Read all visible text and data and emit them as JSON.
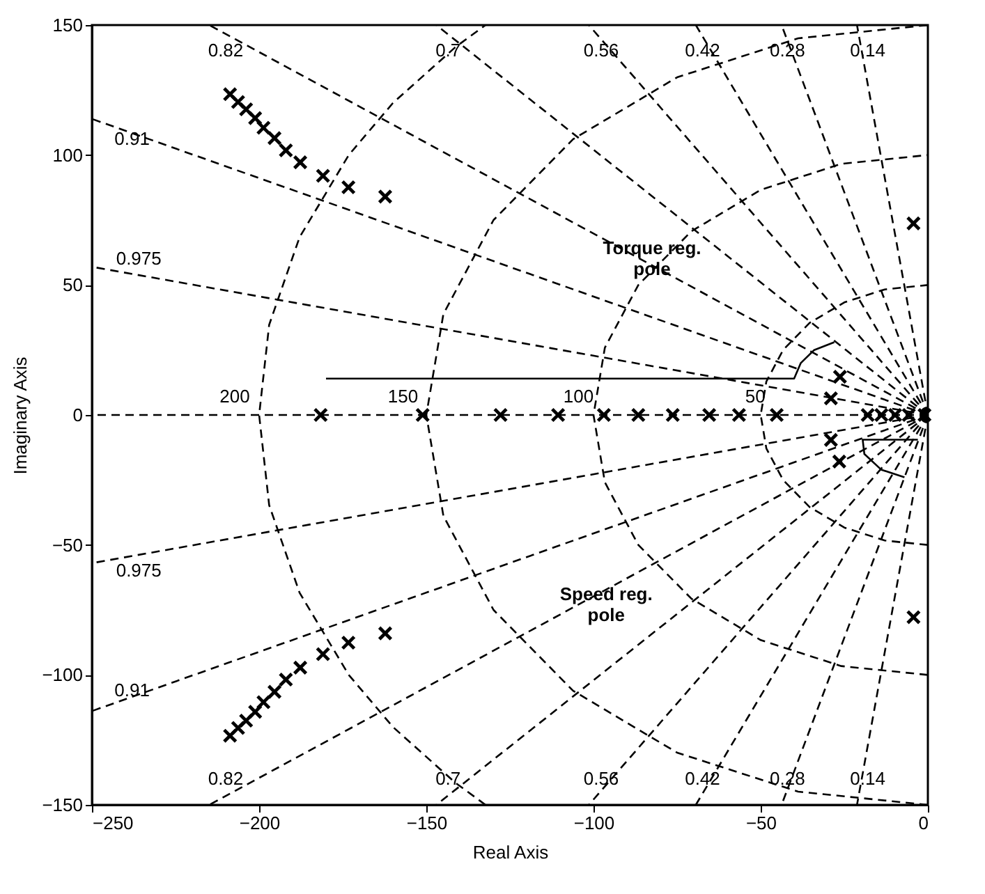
{
  "chart_data": {
    "type": "scatter",
    "xlabel": "Real Axis",
    "ylabel": "Imaginary Axis",
    "xlim": [
      -250,
      0
    ],
    "ylim": [
      -150,
      150
    ],
    "xticks": [
      -250,
      -200,
      -150,
      -100,
      -50,
      0
    ],
    "yticks": [
      -150,
      -100,
      -50,
      0,
      50,
      100,
      150
    ],
    "grid": false,
    "series": [
      {
        "type": "line",
        "line_style": "dashed",
        "color": "#000000",
        "marker": "none",
        "x": [
          0,
          -21.2
        ],
        "values": [
          0,
          150
        ]
      },
      {
        "type": "line",
        "line_style": "dashed",
        "color": "#000000",
        "marker": "none",
        "x": [
          0,
          -43.75
        ],
        "values": [
          0,
          150
        ]
      },
      {
        "type": "line",
        "line_style": "dashed",
        "color": "#000000",
        "marker": "none",
        "x": [
          0,
          -69.4
        ],
        "values": [
          0,
          150
        ]
      },
      {
        "type": "line",
        "line_style": "dashed",
        "color": "#000000",
        "marker": "none",
        "x": [
          0,
          -101.4
        ],
        "values": [
          0,
          150
        ]
      },
      {
        "type": "line",
        "line_style": "dashed",
        "color": "#000000",
        "marker": "none",
        "x": [
          0,
          -147
        ],
        "values": [
          0,
          150
        ]
      },
      {
        "type": "line",
        "line_style": "dashed",
        "color": "#000000",
        "marker": "none",
        "x": [
          0,
          -214.9
        ],
        "values": [
          0,
          150
        ]
      },
      {
        "type": "line",
        "line_style": "dashed",
        "color": "#000000",
        "marker": "none",
        "x": [
          0,
          -250
        ],
        "values": [
          0,
          113.9
        ]
      },
      {
        "type": "line",
        "line_style": "dashed",
        "color": "#000000",
        "marker": "none",
        "x": [
          0,
          -250
        ],
        "values": [
          0,
          57
        ]
      },
      {
        "type": "line",
        "line_style": "dashed",
        "color": "#000000",
        "marker": "none",
        "x": [
          0,
          -250
        ],
        "values": [
          0,
          0
        ]
      },
      {
        "type": "line",
        "line_style": "dashed",
        "color": "#000000",
        "marker": "none",
        "x": [
          0,
          -250
        ],
        "values": [
          0,
          -57
        ]
      },
      {
        "type": "line",
        "line_style": "dashed",
        "color": "#000000",
        "marker": "none",
        "x": [
          0,
          -250
        ],
        "values": [
          0,
          -113.9
        ]
      },
      {
        "type": "line",
        "line_style": "dashed",
        "color": "#000000",
        "marker": "none",
        "x": [
          0,
          -214.9
        ],
        "values": [
          0,
          -150
        ]
      },
      {
        "type": "line",
        "line_style": "dashed",
        "color": "#000000",
        "marker": "none",
        "x": [
          0,
          -147
        ],
        "values": [
          0,
          -150
        ]
      },
      {
        "type": "line",
        "line_style": "dashed",
        "color": "#000000",
        "marker": "none",
        "x": [
          0,
          -101.4
        ],
        "values": [
          0,
          -150
        ]
      },
      {
        "type": "line",
        "line_style": "dashed",
        "color": "#000000",
        "marker": "none",
        "x": [
          0,
          -69.4
        ],
        "values": [
          0,
          -150
        ]
      },
      {
        "type": "line",
        "line_style": "dashed",
        "color": "#000000",
        "marker": "none",
        "x": [
          0,
          -43.75
        ],
        "values": [
          0,
          -150
        ]
      },
      {
        "type": "line",
        "line_style": "dashed",
        "color": "#000000",
        "marker": "none",
        "x": [
          0,
          -21.2
        ],
        "values": [
          0,
          -150
        ]
      },
      {
        "type": "line",
        "line_style": "dashed",
        "color": "#000000",
        "marker": "none",
        "x": [
          0,
          -12.9,
          -25,
          -35.4,
          -43.3,
          -48.3,
          -50,
          -48.3,
          -43.3,
          -35.4,
          -25,
          -12.9,
          0
        ],
        "values": [
          -50,
          -48.3,
          -43.3,
          -35.4,
          -25,
          -12.9,
          0,
          12.9,
          25,
          35.4,
          43.3,
          48.3,
          50
        ]
      },
      {
        "type": "line",
        "line_style": "dashed",
        "color": "#000000",
        "marker": "none",
        "x": [
          0,
          -25.9,
          -50,
          -70.7,
          -86.6,
          -96.6,
          -100,
          -96.6,
          -86.6,
          -70.7,
          -50,
          -25.9,
          0
        ],
        "values": [
          -100,
          -96.6,
          -86.6,
          -70.7,
          -50,
          -25.9,
          0,
          25.9,
          50,
          70.7,
          86.6,
          96.6,
          100
        ]
      },
      {
        "type": "line",
        "line_style": "dashed",
        "color": "#000000",
        "marker": "none",
        "x": [
          0,
          -38.8,
          -75,
          -106.1,
          -129.9,
          -144.9,
          -150,
          -144.9,
          -129.9,
          -106.1,
          -75,
          -38.8,
          0
        ],
        "values": [
          -150,
          -144.9,
          -129.9,
          -106.1,
          -75,
          -38.8,
          0,
          38.8,
          75,
          106.1,
          129.9,
          144.9,
          150
        ]
      },
      {
        "type": "line",
        "line_style": "dashed",
        "color": "#000000",
        "marker": "none",
        "x": [
          -132.3,
          -141.4,
          -160,
          -173.2,
          -187.9,
          -197,
          -200,
          -197,
          -187.9,
          -173.2,
          -160,
          -141.4,
          -132.3
        ],
        "values": [
          -150,
          -141.4,
          -120,
          -100,
          -68.4,
          -34.7,
          0,
          34.7,
          68.4,
          100,
          120,
          141.4,
          150
        ]
      },
      {
        "type": "line",
        "line_style": "solid",
        "color": "#000000",
        "marker": "none",
        "x": [
          -180,
          -40,
          -38,
          -34,
          -28
        ],
        "values": [
          14,
          14,
          20,
          25,
          28
        ]
      },
      {
        "type": "line",
        "line_style": "solid",
        "color": "#000000",
        "marker": "none",
        "x": [
          -3,
          -19.5,
          -19,
          -14,
          -7
        ],
        "values": [
          -9.5,
          -9.5,
          -15,
          -21,
          -24
        ]
      },
      {
        "color": "#000000",
        "marker": "cross",
        "x": [
          -208.7,
          -206.3,
          -203.9,
          -201.2,
          -198.7,
          -195.4,
          -192,
          -187.7,
          -180.9,
          -173.3,
          -162.3,
          -208.7,
          -206.3,
          -203.9,
          -201.2,
          -198.7,
          -195.4,
          -192,
          -187.7,
          -180.9,
          -173.3,
          -162.3,
          -181.6,
          -151.1,
          -127.8,
          -110.6,
          -96.9,
          -86.6,
          -76.3,
          -65.4,
          -56.5,
          -45.2,
          -18,
          -13.9,
          -9.8,
          -5.7,
          -1,
          -26.3,
          -29,
          -29,
          -26.5,
          -4.3,
          -4.3
        ],
        "values": [
          123.4,
          120.4,
          117.6,
          114.2,
          110.5,
          106.5,
          101.8,
          97.2,
          92,
          87.6,
          84,
          -123.4,
          -120.4,
          -117.6,
          -114.2,
          -110.5,
          -106.5,
          -101.8,
          -97.2,
          -92,
          -87.6,
          -84,
          0,
          0,
          0,
          0,
          0,
          0,
          0,
          0,
          0,
          0,
          0,
          0,
          0,
          0,
          0,
          14.7,
          6.4,
          -9.6,
          -17.9,
          73.7,
          -77.8
        ]
      }
    ],
    "annotations": [
      "0.82",
      "0.7",
      "0.56",
      "0.42",
      "0.28",
      "0.14",
      "0.91",
      "0.975",
      "0.975",
      "0.91",
      "0.82",
      "0.7",
      "0.56",
      "0.42",
      "0.28",
      "0.14",
      "200",
      "150",
      "100",
      "50",
      "Torque reg.\npole",
      "Speed reg.\npole"
    ]
  }
}
